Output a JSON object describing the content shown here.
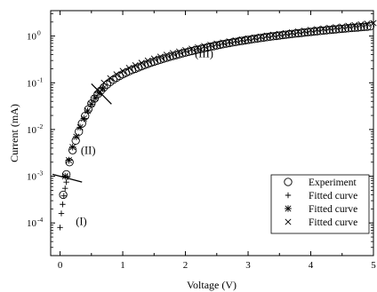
{
  "chart_data": {
    "type": "scatter",
    "xlabel": "Voltage (V)",
    "ylabel": "Current (mA)",
    "xlim": [
      -0.15,
      5.0
    ],
    "ylim": [
      2e-05,
      3.5
    ],
    "yscale": "log",
    "grid": false,
    "legend_position": "lower-right",
    "x_ticks": [
      {
        "value": 0,
        "label": "0"
      },
      {
        "value": 1,
        "label": "1"
      },
      {
        "value": 2,
        "label": "2"
      },
      {
        "value": 3,
        "label": "3"
      },
      {
        "value": 4,
        "label": "4"
      },
      {
        "value": 5,
        "label": "5"
      }
    ],
    "y_ticks": [
      {
        "value": 0.0001,
        "base": "10",
        "exp": "-4"
      },
      {
        "value": 0.001,
        "base": "10",
        "exp": "-3"
      },
      {
        "value": 0.01,
        "base": "10",
        "exp": "-2"
      },
      {
        "value": 0.1,
        "base": "10",
        "exp": "-1"
      },
      {
        "value": 1,
        "base": "10",
        "exp": "0"
      }
    ],
    "region_labels": [
      {
        "text": "(I)",
        "x": 0.25,
        "y": 9e-05
      },
      {
        "text": "(II)",
        "x": 0.33,
        "y": 0.003
      },
      {
        "text": "(III)",
        "x": 2.15,
        "y": 0.35
      }
    ],
    "transition_marks": [
      {
        "name": "I-II",
        "x": [
          -0.12,
          0.35
        ],
        "y": [
          0.0011,
          0.00075
        ]
      },
      {
        "name": "II-III",
        "x": [
          0.5,
          0.82
        ],
        "y": [
          0.095,
          0.035
        ]
      }
    ],
    "series": [
      {
        "name": "Experiment",
        "marker": "circle",
        "x": [
          0.05,
          0.1,
          0.15,
          0.2,
          0.25,
          0.3,
          0.35,
          0.4,
          0.45,
          0.5,
          0.55,
          0.6,
          0.65,
          0.7,
          0.75,
          0.8,
          0.85,
          0.9,
          0.95,
          1.0,
          1.05,
          1.1,
          1.15,
          1.2,
          1.25,
          1.3,
          1.35,
          1.4,
          1.45,
          1.5,
          1.55,
          1.6,
          1.65,
          1.7,
          1.75,
          1.8,
          1.85,
          1.9,
          1.95,
          2.0,
          2.05,
          2.1,
          2.15,
          2.2,
          2.25,
          2.3,
          2.35,
          2.4,
          2.45,
          2.5,
          2.55,
          2.6,
          2.65,
          2.7,
          2.75,
          2.8,
          2.85,
          2.9,
          2.95,
          3.0,
          3.05,
          3.1,
          3.15,
          3.2,
          3.25,
          3.3,
          3.35,
          3.4,
          3.45,
          3.5,
          3.55,
          3.6,
          3.65,
          3.7,
          3.75,
          3.8,
          3.85,
          3.9,
          3.95,
          4.0,
          4.05,
          4.1,
          4.15,
          4.2,
          4.25,
          4.3,
          4.35,
          4.4,
          4.45,
          4.5,
          4.55,
          4.6,
          4.65,
          4.7,
          4.75,
          4.8,
          4.85,
          4.9,
          4.95
        ],
        "y": [
          0.0004,
          0.0011,
          0.002,
          0.0036,
          0.0058,
          0.009,
          0.0135,
          0.0195,
          0.027,
          0.036,
          0.046,
          0.057,
          0.068,
          0.08,
          0.092,
          0.104,
          0.116,
          0.128,
          0.14,
          0.152,
          0.164,
          0.176,
          0.188,
          0.2,
          0.213,
          0.226,
          0.24,
          0.254,
          0.268,
          0.283,
          0.298,
          0.313,
          0.328,
          0.344,
          0.36,
          0.376,
          0.392,
          0.409,
          0.426,
          0.443,
          0.46,
          0.478,
          0.496,
          0.514,
          0.533,
          0.552,
          0.571,
          0.59,
          0.61,
          0.63,
          0.65,
          0.67,
          0.69,
          0.71,
          0.73,
          0.75,
          0.77,
          0.79,
          0.81,
          0.83,
          0.85,
          0.87,
          0.89,
          0.91,
          0.93,
          0.95,
          0.97,
          0.99,
          1.01,
          1.03,
          1.05,
          1.07,
          1.09,
          1.11,
          1.13,
          1.15,
          1.17,
          1.19,
          1.21,
          1.23,
          1.25,
          1.27,
          1.29,
          1.31,
          1.33,
          1.35,
          1.37,
          1.39,
          1.41,
          1.43,
          1.45,
          1.47,
          1.49,
          1.51,
          1.53,
          1.55,
          1.57,
          1.59,
          1.62
        ]
      },
      {
        "name": "Fitted curve",
        "marker": "plus",
        "x": [
          0.0,
          0.02,
          0.04,
          0.06,
          0.08,
          0.1,
          0.12
        ],
        "y": [
          8e-05,
          0.00016,
          0.00025,
          0.00038,
          0.00055,
          0.00075,
          0.00095
        ]
      },
      {
        "name": "Fitted curve",
        "marker": "asterisk",
        "x": [
          0.08,
          0.14,
          0.2,
          0.26,
          0.32,
          0.38,
          0.44,
          0.5,
          0.56,
          0.62,
          0.68
        ],
        "y": [
          0.001,
          0.0022,
          0.0042,
          0.007,
          0.0112,
          0.0172,
          0.025,
          0.035,
          0.047,
          0.06,
          0.075
        ]
      },
      {
        "name": "Fitted curve",
        "marker": "cross",
        "x": [
          0.6,
          0.7,
          0.8,
          0.9,
          1.0,
          1.1,
          1.2,
          1.3,
          1.4,
          1.5,
          1.6,
          1.7,
          1.8,
          1.9,
          2.0,
          2.1,
          2.2,
          2.3,
          2.4,
          2.5,
          2.6,
          2.7,
          2.8,
          2.9,
          3.0,
          3.1,
          3.2,
          3.3,
          3.4,
          3.5,
          3.6,
          3.7,
          3.8,
          3.9,
          4.0,
          4.1,
          4.2,
          4.3,
          4.4,
          4.5,
          4.6,
          4.7,
          4.8,
          4.9,
          5.0
        ],
        "y": [
          0.07,
          0.1,
          0.125,
          0.152,
          0.18,
          0.208,
          0.237,
          0.267,
          0.298,
          0.33,
          0.362,
          0.396,
          0.43,
          0.465,
          0.5,
          0.537,
          0.574,
          0.612,
          0.65,
          0.69,
          0.73,
          0.77,
          0.81,
          0.85,
          0.89,
          0.93,
          0.975,
          1.02,
          1.065,
          1.11,
          1.155,
          1.2,
          1.25,
          1.3,
          1.35,
          1.4,
          1.45,
          1.5,
          1.55,
          1.6,
          1.66,
          1.72,
          1.78,
          1.84,
          1.9
        ]
      }
    ]
  }
}
